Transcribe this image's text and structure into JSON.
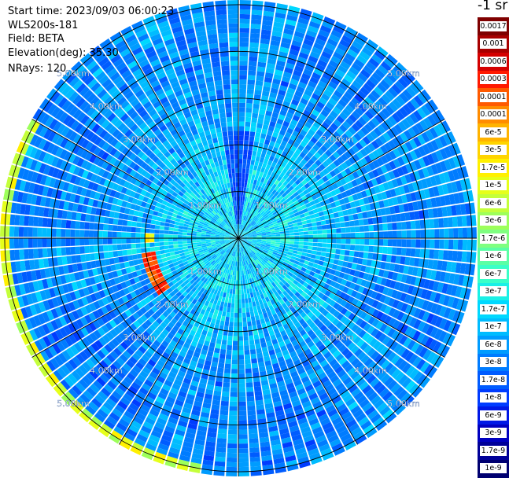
{
  "header": {
    "start_time": "Start time: 2023/09/03 06:00:23",
    "instrument": "WLS200s-181",
    "field": "Field: BETA",
    "elevation": "Elevation(deg): 35.30",
    "nrays": "NRays: 120"
  },
  "colorbar": {
    "unit_label": "-1 sr",
    "levels": [
      {
        "label": "0.0017",
        "color": "#7f0000"
      },
      {
        "label": "0.001",
        "color": "#a80000"
      },
      {
        "label": "0.0006",
        "color": "#d40000"
      },
      {
        "label": "0.0003",
        "color": "#ff1a00"
      },
      {
        "label": "0.00017",
        "color": "#ff5a00"
      },
      {
        "label": "0.0001",
        "color": "#ff8c00"
      },
      {
        "label": "6e-5",
        "color": "#ffb300"
      },
      {
        "label": "3e-5",
        "color": "#ffd400"
      },
      {
        "label": "1.7e-5",
        "color": "#fff000"
      },
      {
        "label": "1e-5",
        "color": "#e6ff1a"
      },
      {
        "label": "6e-6",
        "color": "#c4ff3a"
      },
      {
        "label": "3e-6",
        "color": "#9dff5a"
      },
      {
        "label": "1.7e-6",
        "color": "#7fff80"
      },
      {
        "label": "1e-6",
        "color": "#5affa5"
      },
      {
        "label": "6e-7",
        "color": "#3affc8"
      },
      {
        "label": "3e-7",
        "color": "#1af0e6"
      },
      {
        "label": "1.7e-7",
        "color": "#00d8ff"
      },
      {
        "label": "1e-7",
        "color": "#00bcff"
      },
      {
        "label": "6e-8",
        "color": "#009cff"
      },
      {
        "label": "3e-8",
        "color": "#007cff"
      },
      {
        "label": "1.7e-8",
        "color": "#005cff"
      },
      {
        "label": "1e-8",
        "color": "#003cff"
      },
      {
        "label": "6e-9",
        "color": "#0018e6"
      },
      {
        "label": "3e-9",
        "color": "#0000c0"
      },
      {
        "label": "1.7e-9",
        "color": "#000098"
      },
      {
        "label": "1e-9",
        "color": "#000070"
      }
    ]
  },
  "chart_data": {
    "type": "heatmap",
    "projection": "polar-ppi",
    "field": "BETA",
    "elevation_deg": 35.3,
    "n_rays": 120,
    "radial_grid_km": [
      1,
      2,
      3,
      4,
      5
    ],
    "max_range_km": 5.1,
    "range_labels": [
      "1.00km",
      "2.00km",
      "3.00km",
      "4.00km",
      "5.00km"
    ],
    "spoke_angles_deg": [
      0,
      30,
      60,
      90,
      120,
      150,
      180,
      210,
      240,
      270,
      300,
      330
    ],
    "value_profile": [
      {
        "range_km": 0.0,
        "beta": 2e-07
      },
      {
        "range_km": 1.0,
        "beta": 2.5e-07
      },
      {
        "range_km": 1.6,
        "beta": 1.6e-07
      },
      {
        "range_km": 2.2,
        "beta": 1.1e-07
      },
      {
        "range_km": 3.0,
        "beta": 7e-08
      },
      {
        "range_km": 4.0,
        "beta": 5e-08
      },
      {
        "range_km": 5.0,
        "beta": 6e-08
      }
    ],
    "features": [
      {
        "name": "high-beta arc west",
        "range_km": 1.95,
        "azimuth_deg": [
          190,
          215
        ],
        "beta": 0.0003
      },
      {
        "name": "near-range arc west",
        "range_km": 1.9,
        "azimuth_deg": [
          176,
          183
        ],
        "beta": 1.7e-05
      },
      {
        "name": "outer ring edge",
        "range_km": 5.0,
        "azimuth_deg": [
          150,
          260
        ],
        "beta": 1e-05
      },
      {
        "name": "weak returns north",
        "range_km": 1.3,
        "azimuth_deg": [
          80,
          100
        ],
        "beta": 1e-08
      }
    ]
  }
}
